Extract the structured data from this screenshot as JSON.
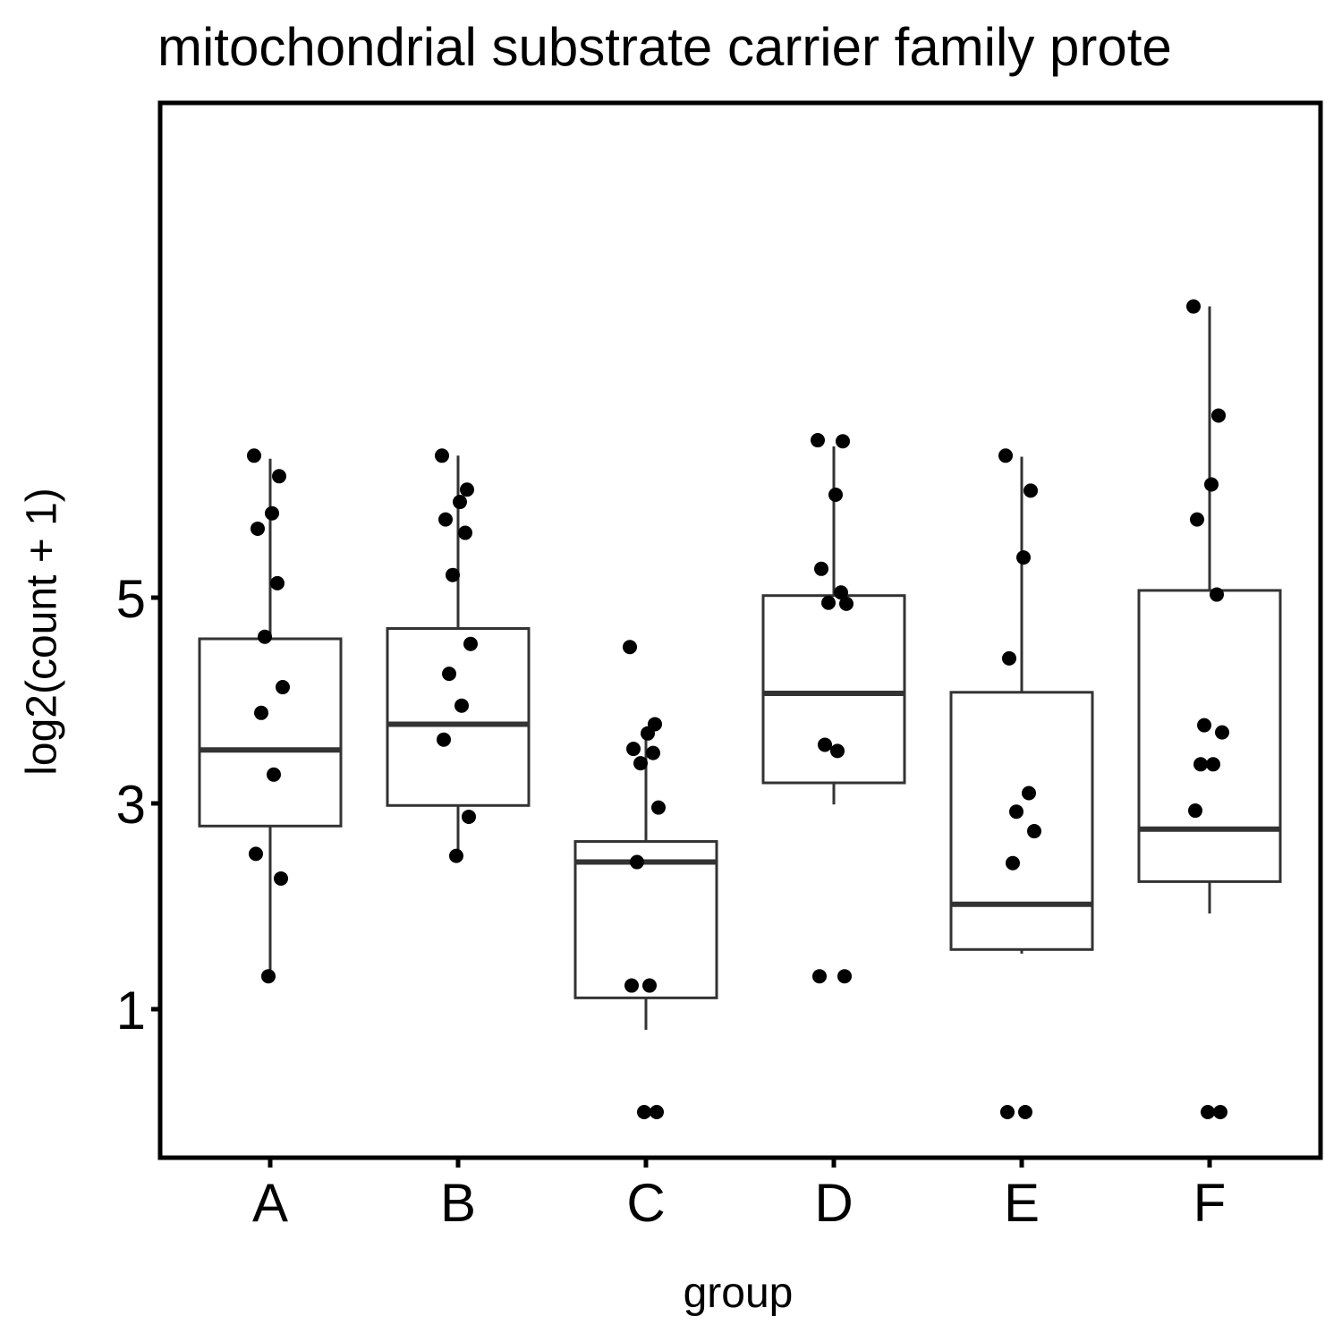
{
  "chart_data": {
    "type": "box",
    "title": "mitochondrial substrate carrier family prote",
    "xlabel": "group",
    "ylabel": "log2(count + 1)",
    "ylim": [
      0,
      7.2
    ],
    "yticks": [
      1,
      3,
      5
    ],
    "categories": [
      "A",
      "B",
      "C",
      "D",
      "E",
      "F"
    ],
    "boxes": [
      {
        "group": "A",
        "q1": 2.78,
        "median": 3.52,
        "q3": 4.6,
        "whisker_low": 1.32,
        "whisker_high": 6.35
      },
      {
        "group": "B",
        "q1": 2.98,
        "median": 3.77,
        "q3": 4.7,
        "whisker_low": 2.49,
        "whisker_high": 6.38
      },
      {
        "group": "C",
        "q1": 1.11,
        "median": 2.43,
        "q3": 2.63,
        "whisker_low": 0.8,
        "whisker_high": 3.74
      },
      {
        "group": "D",
        "q1": 3.2,
        "median": 4.07,
        "q3": 5.02,
        "whisker_low": 2.99,
        "whisker_high": 6.47
      },
      {
        "group": "E",
        "q1": 1.58,
        "median": 2.02,
        "q3": 4.08,
        "whisker_low": 1.54,
        "whisker_high": 6.37
      },
      {
        "group": "F",
        "q1": 2.24,
        "median": 2.75,
        "q3": 5.07,
        "whisker_low": 1.93,
        "whisker_high": 7.83
      }
    ],
    "points": [
      {
        "group": "A",
        "values": [
          6.38,
          6.18,
          5.82,
          5.67,
          5.14,
          4.62,
          4.13,
          3.88,
          3.28,
          2.51,
          2.27,
          1.32
        ]
      },
      {
        "group": "B",
        "values": [
          6.38,
          6.05,
          5.93,
          5.76,
          5.63,
          5.22,
          4.55,
          4.26,
          3.95,
          3.62,
          2.87,
          2.49
        ]
      },
      {
        "group": "C",
        "values": [
          4.52,
          3.77,
          3.68,
          3.53,
          3.49,
          3.39,
          2.96,
          2.43,
          1.23,
          1.23,
          0,
          0
        ]
      },
      {
        "group": "D",
        "values": [
          6.53,
          6.52,
          6.0,
          5.28,
          5.05,
          4.95,
          4.94,
          3.57,
          3.51,
          1.32,
          1.32
        ]
      },
      {
        "group": "E",
        "values": [
          6.38,
          6.04,
          5.39,
          4.41,
          3.1,
          2.92,
          2.73,
          2.42,
          0,
          0
        ]
      },
      {
        "group": "F",
        "values": [
          7.83,
          6.77,
          6.1,
          5.76,
          5.03,
          3.76,
          3.69,
          3.38,
          3.38,
          2.93,
          0,
          0
        ]
      }
    ],
    "colors": {
      "box_stroke": "#333333",
      "point": "#000000",
      "axis": "#000000"
    },
    "grid": false
  }
}
